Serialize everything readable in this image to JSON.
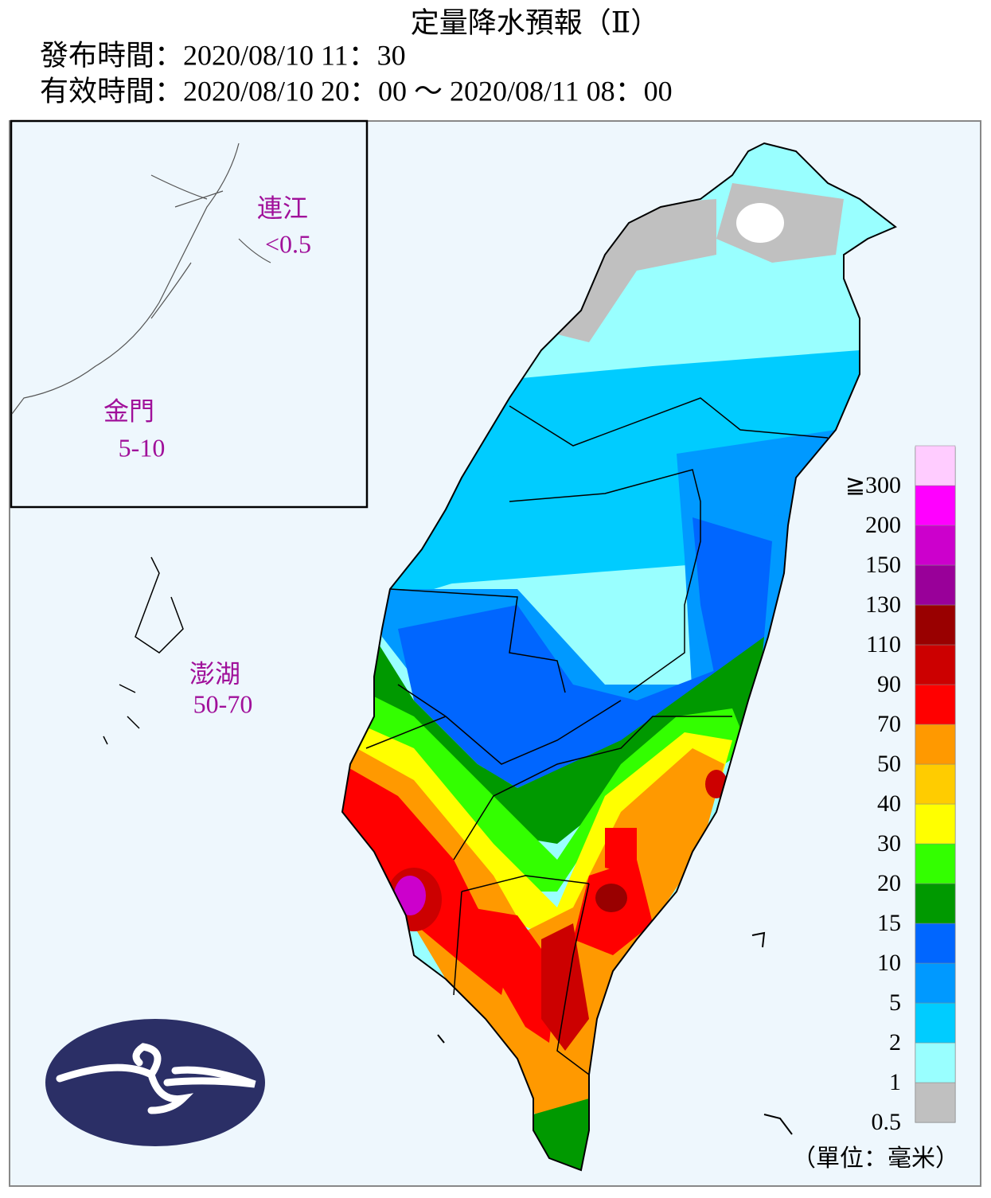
{
  "header": {
    "title": "定量降水預報（Ⅱ）",
    "issued": "發布時間：2020/08/10 11：30",
    "valid": "有效時間：2020/08/10 20：00 ～ 2020/08/11 08：00"
  },
  "regions": [
    {
      "name": "連江",
      "amount": "<0.5"
    },
    {
      "name": "金門",
      "amount": "5-10"
    },
    {
      "name": "澎湖",
      "amount": "50-70"
    }
  ],
  "legend": {
    "unit": "（單位：毫米）",
    "items": [
      {
        "label": "0.5",
        "color": "#c0c0c0"
      },
      {
        "label": "1",
        "color": "#99ffff"
      },
      {
        "label": "2",
        "color": "#00ccff"
      },
      {
        "label": "5",
        "color": "#0099ff"
      },
      {
        "label": "10",
        "color": "#0066ff"
      },
      {
        "label": "15",
        "color": "#009900"
      },
      {
        "label": "20",
        "color": "#33ff00"
      },
      {
        "label": "30",
        "color": "#ffff00"
      },
      {
        "label": "40",
        "color": "#ffcc00"
      },
      {
        "label": "50",
        "color": "#ff9900"
      },
      {
        "label": "70",
        "color": "#ff0000"
      },
      {
        "label": "90",
        "color": "#cc0000"
      },
      {
        "label": "110",
        "color": "#990000"
      },
      {
        "label": "130",
        "color": "#990099"
      },
      {
        "label": "150",
        "color": "#cc00cc"
      },
      {
        "label": "200",
        "color": "#ff00ff"
      },
      {
        "label": "≧300",
        "color": "#ffccff"
      }
    ]
  }
}
